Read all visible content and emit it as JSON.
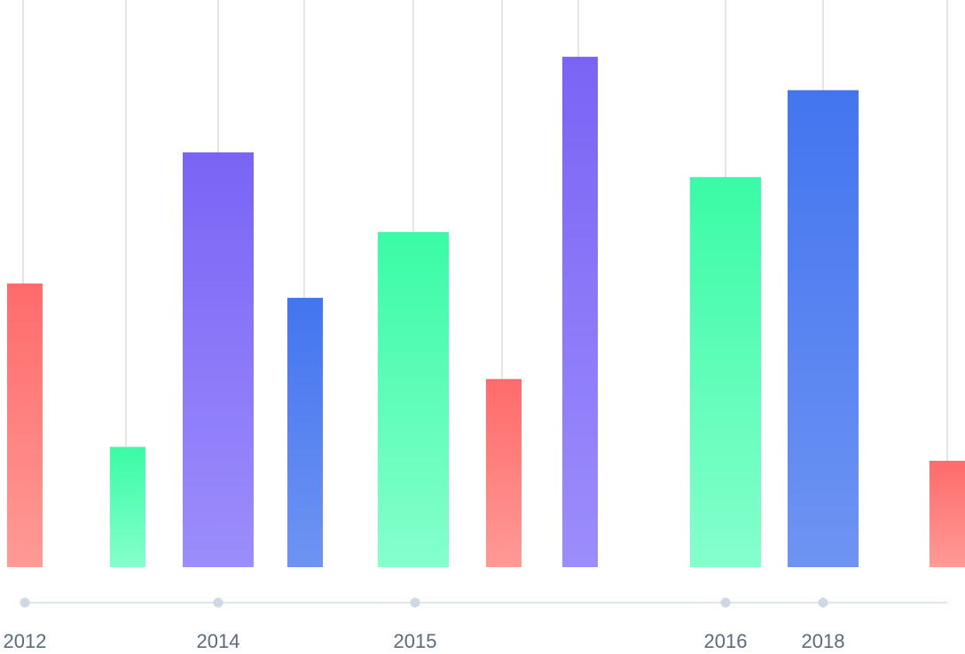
{
  "chart_data": {
    "type": "bar",
    "title": "",
    "xlabel": "",
    "ylabel": "",
    "ylim": [
      0,
      100
    ],
    "grid": false,
    "bars": [
      {
        "value": 55.2,
        "color": "red"
      },
      {
        "value": 23.4,
        "color": "green"
      },
      {
        "value": 80.7,
        "color": "purple"
      },
      {
        "value": 52.4,
        "color": "blue"
      },
      {
        "value": 65.2,
        "color": "green"
      },
      {
        "value": 36.6,
        "color": "red"
      },
      {
        "value": 99.3,
        "color": "purple"
      },
      {
        "value": 75.9,
        "color": "green"
      },
      {
        "value": 92.8,
        "color": "blue"
      },
      {
        "value": 20.7,
        "color": "red"
      }
    ],
    "timeline_labels": [
      "2012",
      "2014",
      "2015",
      "2016",
      "2018"
    ]
  },
  "colors": {
    "red_top": "#ff6b6b",
    "red_bottom": "#ff9a95",
    "green_top": "#3afba6",
    "green_bottom": "#85ffcc",
    "purple_top": "#7a64f5",
    "purple_bottom": "#9c8dfc",
    "blue_top": "#4375f0",
    "blue_bottom": "#6e94f2",
    "axis_line": "#dfe6ee",
    "grid_line": "#d9dde3",
    "dot": "#cfd8e6",
    "label": "#5a6a80"
  }
}
